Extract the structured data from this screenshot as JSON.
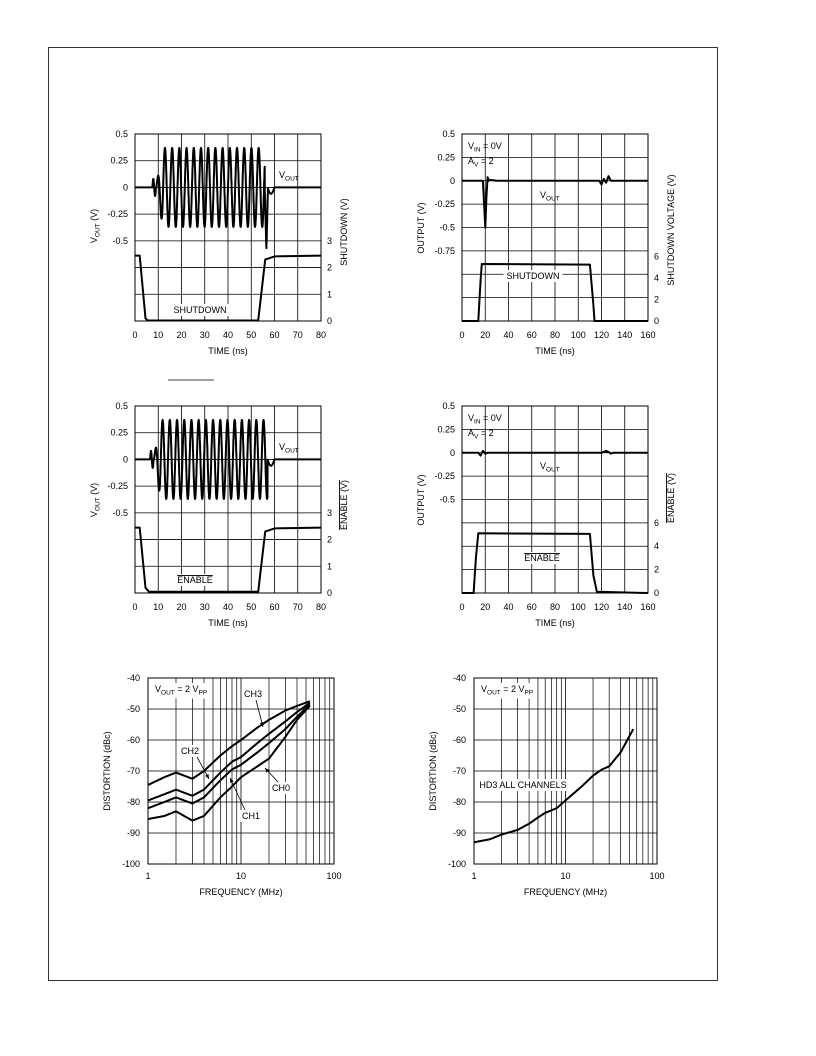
{
  "charts": {
    "shutdown_response": {
      "xlabel": "TIME (ns)",
      "ylabel_left": "V_OUT (V)",
      "ylabel_right": "SHUTDOWN (V)",
      "trace1_label": "V_OUT",
      "trace2_label": "SHUTDOWN",
      "trace2_overline": false,
      "x_ticks": [
        "0",
        "10",
        "20",
        "30",
        "40",
        "50",
        "60",
        "70",
        "80"
      ],
      "y_ticks_top": [
        "0.5",
        "0.25",
        "0",
        "-0.25",
        "-0.5"
      ],
      "y_ticks_bottom": [
        "3",
        "2",
        "1",
        "0"
      ]
    },
    "shutdown_voltage": {
      "xlabel": "TIME (ns)",
      "ylabel_left": "OUTPUT (V)",
      "ylabel_right": "SHUTDOWN VOLTAGE (V)",
      "trace1_label": "V_OUT",
      "trace2_label": "SHUTDOWN",
      "trace2_overline": false,
      "note1": "V_IN = 0V",
      "note2": "A_V = 2",
      "x_ticks": [
        "0",
        "20",
        "40",
        "60",
        "80",
        "100",
        "120",
        "140",
        "160"
      ],
      "y_ticks_top": [
        "0.5",
        "0.25",
        "0",
        "-0.25",
        "-0.5",
        "-0.75"
      ],
      "y_ticks_bottom": [
        "6",
        "4",
        "2",
        "0"
      ]
    },
    "enable_response": {
      "xlabel": "TIME (ns)",
      "ylabel_left": "V_OUT (V)",
      "ylabel_right": "ENABLE (V)",
      "trace1_label": "V_OUT",
      "trace2_label": "ENABLE",
      "trace2_overline": true,
      "x_ticks": [
        "0",
        "10",
        "20",
        "30",
        "40",
        "50",
        "60",
        "70",
        "80"
      ],
      "y_ticks_top": [
        "0.5",
        "0.25",
        "0",
        "-0.25",
        "-0.5"
      ],
      "y_ticks_bottom": [
        "3",
        "2",
        "1",
        "0"
      ]
    },
    "enable_voltage": {
      "xlabel": "TIME (ns)",
      "ylabel_left": "OUTPUT (V)",
      "ylabel_right": "ENABLE (V)",
      "trace1_label": "V_OUT",
      "trace2_label": "ENABLE",
      "trace2_overline": true,
      "note1": "V_IN = 0V",
      "note2": "A_V = 2",
      "x_ticks": [
        "0",
        "20",
        "40",
        "60",
        "80",
        "100",
        "120",
        "140",
        "160"
      ],
      "y_ticks_top": [
        "0.5",
        "0.25",
        "0",
        "-0.25",
        "-0.5"
      ],
      "y_ticks_bottom": [
        "6",
        "4",
        "2",
        "0"
      ]
    },
    "distortion_by_channel": {
      "xlabel": "FREQUENCY (MHz)",
      "ylabel": "DISTORTION (dBc)",
      "note": "V_OUT = 2 V_PP",
      "x_ticks": [
        "1",
        "10",
        "100"
      ],
      "y_ticks": [
        "-40",
        "-50",
        "-60",
        "-70",
        "-80",
        "-90",
        "-100"
      ]
    },
    "hd3_distortion": {
      "xlabel": "FREQUENCY (MHz)",
      "ylabel": "DISTORTION (dBc)",
      "note": "V_OUT = 2 V_PP",
      "trace_label": "HD3 ALL CHANNELS",
      "x_ticks": [
        "1",
        "10",
        "100"
      ],
      "y_ticks": [
        "-40",
        "-50",
        "-60",
        "-70",
        "-80",
        "-90",
        "-100"
      ]
    }
  },
  "chart_data": [
    {
      "type": "line",
      "xlabel": "TIME (ns)",
      "ylabel": "V_OUT (V)",
      "y2label": "SHUTDOWN (V)",
      "xlim": [
        0,
        80
      ],
      "ylim": [
        -0.5,
        0.5
      ],
      "y2lim": [
        0,
        3
      ],
      "series": [
        {
          "name": "V_OUT",
          "kind": "burst",
          "t_start": 9,
          "t_end": 57,
          "amplitude": 0.37,
          "period_ns": 3.1,
          "dip_at": 56.5,
          "dip_value": -0.58
        },
        {
          "name": "SHUTDOWN",
          "axis": "y2",
          "x": [
            0,
            2,
            4.5,
            5.5,
            53,
            56,
            60,
            80
          ],
          "y": [
            2.45,
            2.45,
            0.1,
            0.02,
            0.02,
            2.3,
            2.42,
            2.45
          ]
        }
      ]
    },
    {
      "type": "line",
      "xlabel": "TIME (ns)",
      "ylabel": "OUTPUT (V)",
      "y2label": "SHUTDOWN VOLTAGE (V)",
      "xlim": [
        0,
        160
      ],
      "ylim": [
        -0.75,
        0.5
      ],
      "y2lim": [
        0,
        6
      ],
      "series": [
        {
          "name": "V_OUT",
          "x": [
            0,
            18,
            19,
            20,
            21,
            22,
            23,
            24,
            30,
            60,
            100,
            118,
            120,
            122,
            124,
            126,
            128,
            160
          ],
          "y": [
            0,
            0,
            -0.25,
            -0.5,
            -0.18,
            0.04,
            0,
            0.01,
            0,
            0,
            0,
            0,
            -0.04,
            0.02,
            -0.02,
            0.05,
            0,
            0
          ]
        },
        {
          "name": "SHUTDOWN",
          "axis": "y2",
          "x": [
            0,
            14,
            16,
            17,
            110,
            113,
            114,
            160
          ],
          "y": [
            0,
            0,
            3.8,
            5.3,
            5.25,
            1.5,
            0,
            0
          ]
        }
      ]
    },
    {
      "type": "line",
      "xlabel": "TIME (ns)",
      "ylabel": "V_OUT (V)",
      "y2label": "ENABLE (V)",
      "xlim": [
        0,
        80
      ],
      "ylim": [
        -0.5,
        0.5
      ],
      "y2lim": [
        0,
        3
      ],
      "series": [
        {
          "name": "V_OUT",
          "kind": "burst",
          "t_start": 8,
          "t_end": 57,
          "amplitude": 0.37,
          "period_ns": 3.1
        },
        {
          "name": "ENABLE",
          "axis": "y2",
          "x": [
            0,
            2,
            4.5,
            6,
            53,
            56,
            60,
            80
          ],
          "y": [
            2.45,
            2.45,
            0.2,
            0.05,
            0.05,
            2.3,
            2.42,
            2.45
          ]
        }
      ]
    },
    {
      "type": "line",
      "xlabel": "TIME (ns)",
      "ylabel": "OUTPUT (V)",
      "y2label": "ENABLE (V)",
      "xlim": [
        0,
        160
      ],
      "ylim": [
        -0.5,
        0.5
      ],
      "y2lim": [
        0,
        6
      ],
      "series": [
        {
          "name": "V_OUT",
          "x": [
            0,
            14,
            16,
            18,
            20,
            22,
            60,
            120,
            124,
            126,
            128,
            130,
            160
          ],
          "y": [
            0,
            0,
            -0.03,
            0.02,
            -0.01,
            0,
            0,
            0,
            0.02,
            0.01,
            -0.01,
            0,
            0
          ]
        },
        {
          "name": "ENABLE",
          "axis": "y2",
          "x": [
            0,
            10,
            12,
            14,
            110,
            113,
            116,
            160
          ],
          "y": [
            0,
            0,
            3,
            5.1,
            5.05,
            1.5,
            0.1,
            0
          ]
        }
      ]
    },
    {
      "type": "line",
      "xlabel": "FREQUENCY (MHz)",
      "ylabel": "DISTORTION (dBc)",
      "xscale": "log",
      "xlim": [
        1,
        100
      ],
      "ylim": [
        -100,
        -40
      ],
      "series": [
        {
          "name": "CH3",
          "x": [
            1,
            1.5,
            2,
            3,
            4,
            6,
            8,
            10,
            15,
            20,
            30,
            40,
            55
          ],
          "y": [
            -74.5,
            -72,
            -70.5,
            -72.5,
            -70,
            -65,
            -62,
            -60,
            -56,
            -53.5,
            -50.5,
            -49,
            -47.5
          ]
        },
        {
          "name": "CH2",
          "x": [
            1,
            1.5,
            2,
            3,
            4,
            6,
            8,
            10,
            15,
            20,
            30,
            40,
            55
          ],
          "y": [
            -79.5,
            -77.5,
            -76,
            -78,
            -76,
            -70.5,
            -67,
            -65.5,
            -61,
            -58,
            -54,
            -51,
            -48
          ]
        },
        {
          "name": "CH1",
          "x": [
            1,
            1.5,
            2,
            3,
            4,
            6,
            8,
            10,
            15,
            20,
            30,
            40,
            55
          ],
          "y": [
            -82,
            -80,
            -78.5,
            -80.5,
            -78.5,
            -73,
            -69.5,
            -68,
            -64,
            -61,
            -56.5,
            -52.5,
            -48.5
          ]
        },
        {
          "name": "CH0",
          "x": [
            1,
            1.5,
            2,
            3,
            4,
            6,
            8,
            10,
            15,
            20,
            30,
            40,
            55
          ],
          "y": [
            -85.5,
            -84.5,
            -83,
            -86,
            -84.5,
            -78.5,
            -75,
            -72,
            -68.5,
            -66,
            -59,
            -53.5,
            -49
          ]
        }
      ]
    },
    {
      "type": "line",
      "xlabel": "FREQUENCY (MHz)",
      "ylabel": "DISTORTION (dBc)",
      "xscale": "log",
      "xlim": [
        1,
        100
      ],
      "ylim": [
        -100,
        -40
      ],
      "series": [
        {
          "name": "HD3 ALL CHANNELS",
          "x": [
            1,
            1.5,
            2,
            3,
            4,
            5,
            6,
            8,
            10,
            15,
            20,
            25,
            30,
            40,
            55
          ],
          "y": [
            -93,
            -92,
            -90.5,
            -89,
            -87,
            -85,
            -83.5,
            -82,
            -79.5,
            -75,
            -71.5,
            -69.5,
            -68.5,
            -64,
            -56.5
          ]
        }
      ]
    }
  ]
}
